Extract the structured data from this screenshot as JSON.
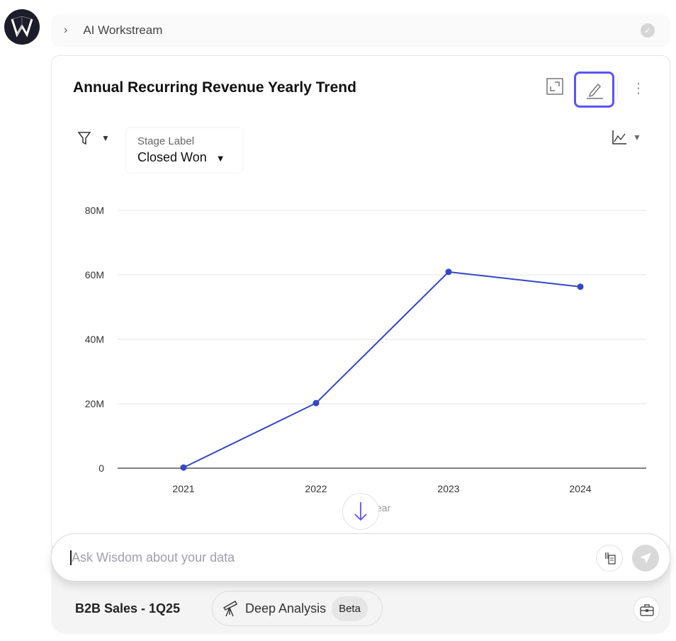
{
  "workstream": {
    "label": "AI Workstream"
  },
  "card": {
    "title": "Annual Recurring Revenue Yearly Trend"
  },
  "filter": {
    "stage_label": "Stage Label",
    "stage_value": "Closed Won"
  },
  "composer": {
    "placeholder": "Ask Wisdom about your data",
    "dataset": "B2B Sales - 1Q25",
    "deep_analysis": "Deep Analysis",
    "beta": "Beta"
  },
  "colors": {
    "accent": "#5b54f5",
    "line": "#3447c4"
  },
  "chart_data": {
    "type": "line",
    "title": "Annual Recurring Revenue Yearly Trend",
    "xlabel": "Year",
    "ylabel": "",
    "categories": [
      "2021",
      "2022",
      "2023",
      "2024"
    ],
    "values": [
      0.2,
      20.2,
      60.9,
      56.3
    ],
    "unit": "M",
    "ylim": [
      0,
      80
    ],
    "yticks": [
      "0",
      "20M",
      "40M",
      "60M",
      "80M"
    ],
    "grid": true
  }
}
